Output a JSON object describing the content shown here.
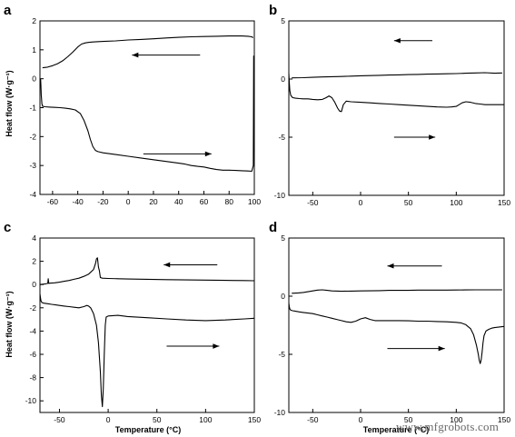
{
  "watermark": "www.mfgrobots.com",
  "chart_data": [
    {
      "type": "line",
      "panel_label": "a",
      "ylabel": "Heat flow (W·g⁻¹)",
      "xlabel": "",
      "xlim": [
        -70,
        100
      ],
      "ylim": [
        -4,
        2
      ],
      "xticks": [
        -60,
        -40,
        -20,
        0,
        20,
        40,
        60,
        80,
        100
      ],
      "yticks": [
        -4,
        -3,
        -2,
        -1,
        0,
        1,
        2
      ],
      "arrows": [
        {
          "direction": "left",
          "x1": 57,
          "x2": 3,
          "y": 0.82
        },
        {
          "direction": "right",
          "x1": 12,
          "x2": 66,
          "y": -2.6
        }
      ],
      "series": [
        {
          "x": [
            -68,
            -64,
            -60,
            -56,
            -52,
            -48,
            -44,
            -40,
            -37,
            -34,
            -31,
            -28,
            -25,
            -20,
            -10,
            0,
            10,
            20,
            30,
            40,
            50,
            60,
            70,
            80,
            90,
            95,
            98,
            99
          ],
          "y": [
            0.38,
            0.4,
            0.45,
            0.52,
            0.62,
            0.76,
            0.92,
            1.1,
            1.2,
            1.24,
            1.26,
            1.27,
            1.28,
            1.29,
            1.31,
            1.34,
            1.36,
            1.38,
            1.41,
            1.43,
            1.45,
            1.46,
            1.47,
            1.48,
            1.48,
            1.47,
            1.45,
            1.42
          ]
        },
        {
          "x": [
            -69.5,
            -69.3,
            -69,
            -68.5,
            -68,
            -66,
            -62,
            -58,
            -54,
            -50,
            -46,
            -42,
            -38,
            -35,
            -32,
            -30,
            -28,
            -26,
            -24,
            -22,
            -20,
            -10,
            0,
            10,
            20,
            30,
            40,
            45,
            50,
            55,
            60,
            65,
            70,
            75,
            80,
            85,
            90,
            95,
            98,
            99.2,
            99.5
          ],
          "y": [
            0.0,
            -0.2,
            -0.55,
            -0.85,
            -0.95,
            -0.97,
            -0.98,
            -0.99,
            -1.0,
            -1.02,
            -1.04,
            -1.08,
            -1.2,
            -1.45,
            -1.8,
            -2.1,
            -2.35,
            -2.48,
            -2.52,
            -2.54,
            -2.56,
            -2.62,
            -2.68,
            -2.74,
            -2.8,
            -2.86,
            -2.92,
            -2.95,
            -3.0,
            -3.03,
            -3.05,
            -3.1,
            -3.14,
            -3.16,
            -3.16,
            -3.17,
            -3.18,
            -3.19,
            -3.2,
            -3.0,
            0.8
          ]
        }
      ]
    },
    {
      "type": "line",
      "panel_label": "b",
      "ylabel": "",
      "xlabel": "",
      "xlim": [
        -75,
        150
      ],
      "ylim": [
        -10,
        5
      ],
      "xticks": [
        -50,
        0,
        50,
        100,
        150
      ],
      "yticks": [
        -10,
        -5,
        0,
        5
      ],
      "arrows": [
        {
          "direction": "left",
          "x1": 75,
          "x2": 35,
          "y": 3.3
        },
        {
          "direction": "right",
          "x1": 35,
          "x2": 78,
          "y": -5.0
        }
      ],
      "series": [
        {
          "x": [
            -72,
            -60,
            -50,
            -40,
            -30,
            -20,
            -10,
            0,
            10,
            20,
            30,
            40,
            50,
            60,
            70,
            80,
            90,
            100,
            110,
            120,
            130,
            140,
            148
          ],
          "y": [
            0.1,
            0.12,
            0.15,
            0.18,
            0.2,
            0.22,
            0.25,
            0.28,
            0.3,
            0.32,
            0.34,
            0.36,
            0.38,
            0.4,
            0.42,
            0.44,
            0.45,
            0.47,
            0.5,
            0.52,
            0.55,
            0.5,
            0.52
          ]
        },
        {
          "x": [
            -75,
            -74.5,
            -74,
            -73,
            -71,
            -68,
            -64,
            -60,
            -55,
            -50,
            -45,
            -40,
            -36,
            -33,
            -30,
            -27,
            -24,
            -22,
            -20,
            -18,
            -15,
            -10,
            0,
            10,
            20,
            30,
            40,
            50,
            60,
            70,
            80,
            90,
            95,
            100,
            103,
            106,
            110,
            115,
            120,
            125,
            130,
            140,
            150
          ],
          "y": [
            0.5,
            -0.3,
            -1.0,
            -1.4,
            -1.6,
            -1.65,
            -1.68,
            -1.7,
            -1.7,
            -1.75,
            -1.78,
            -1.75,
            -1.6,
            -1.45,
            -1.6,
            -2.0,
            -2.5,
            -2.75,
            -2.8,
            -2.2,
            -1.9,
            -1.95,
            -2.0,
            -2.05,
            -2.1,
            -2.15,
            -2.2,
            -2.25,
            -2.3,
            -2.35,
            -2.4,
            -2.42,
            -2.4,
            -2.35,
            -2.2,
            -2.05,
            -1.95,
            -2.0,
            -2.1,
            -2.15,
            -2.2,
            -2.2,
            -2.2
          ]
        }
      ]
    },
    {
      "type": "line",
      "panel_label": "c",
      "ylabel": "Heat flow (W·g⁻¹)",
      "xlabel": "Temperature (°C)",
      "xlim": [
        -70,
        150
      ],
      "ylim": [
        -11,
        4
      ],
      "xticks": [
        -50,
        0,
        50,
        100,
        150
      ],
      "yticks": [
        -10,
        -8,
        -6,
        -4,
        -2,
        0,
        2,
        4
      ],
      "arrows": [
        {
          "direction": "left",
          "x1": 112,
          "x2": 57,
          "y": 1.7
        },
        {
          "direction": "right",
          "x1": 60,
          "x2": 114,
          "y": -5.3
        }
      ],
      "series": [
        {
          "x": [
            -70,
            -65,
            -62,
            -61.5,
            -61,
            -60,
            -55,
            -50,
            -45,
            -40,
            -35,
            -30,
            -25,
            -20,
            -15,
            -13,
            -12,
            -11,
            -10,
            -9,
            -8,
            -6,
            0,
            10,
            20,
            40,
            60,
            80,
            100,
            120,
            140,
            150
          ],
          "y": [
            0.0,
            0.05,
            0.1,
            0.5,
            0.1,
            0.12,
            0.15,
            0.2,
            0.28,
            0.35,
            0.45,
            0.55,
            0.7,
            0.9,
            1.3,
            1.8,
            2.2,
            2.3,
            1.5,
            1.2,
            0.6,
            0.55,
            0.52,
            0.5,
            0.48,
            0.45,
            0.42,
            0.4,
            0.38,
            0.36,
            0.34,
            0.33
          ]
        },
        {
          "x": [
            -70,
            -69.5,
            -69,
            -68,
            -66,
            -62,
            -58,
            -54,
            -50,
            -45,
            -40,
            -35,
            -30,
            -25,
            -22,
            -20,
            -18,
            -15,
            -12,
            -10,
            -8,
            -7,
            -6,
            -5,
            -4,
            -3,
            -2,
            0,
            10,
            20,
            40,
            60,
            80,
            100,
            120,
            140,
            150
          ],
          "y": [
            -0.8,
            -1.1,
            -1.4,
            -1.55,
            -1.6,
            -1.65,
            -1.7,
            -1.75,
            -1.8,
            -1.85,
            -1.9,
            -1.95,
            -2.0,
            -1.9,
            -1.8,
            -1.85,
            -2.0,
            -2.5,
            -3.5,
            -5.0,
            -7.5,
            -9.5,
            -10.5,
            -9.0,
            -6.0,
            -3.5,
            -2.8,
            -2.7,
            -2.65,
            -2.75,
            -2.85,
            -2.95,
            -3.05,
            -3.1,
            -3.05,
            -2.95,
            -2.9
          ]
        }
      ]
    },
    {
      "type": "line",
      "panel_label": "d",
      "ylabel": "",
      "xlabel": "Temperature (°C)",
      "xlim": [
        -75,
        150
      ],
      "ylim": [
        -10,
        5
      ],
      "xticks": [
        -50,
        0,
        50,
        100,
        150
      ],
      "yticks": [
        -10,
        -5,
        0,
        5
      ],
      "arrows": [
        {
          "direction": "left",
          "x1": 85,
          "x2": 28,
          "y": 2.6
        },
        {
          "direction": "right",
          "x1": 28,
          "x2": 88,
          "y": -4.5
        }
      ],
      "series": [
        {
          "x": [
            -72,
            -65,
            -60,
            -55,
            -50,
            -45,
            -40,
            -35,
            -30,
            -20,
            -10,
            0,
            10,
            20,
            30,
            40,
            50,
            60,
            70,
            80,
            90,
            100,
            110,
            120,
            130,
            140,
            148
          ],
          "y": [
            0.25,
            0.28,
            0.32,
            0.38,
            0.45,
            0.52,
            0.55,
            0.5,
            0.45,
            0.42,
            0.44,
            0.45,
            0.46,
            0.48,
            0.5,
            0.5,
            0.5,
            0.52,
            0.52,
            0.52,
            0.52,
            0.53,
            0.54,
            0.55,
            0.55,
            0.55,
            0.55
          ]
        },
        {
          "x": [
            -75,
            -74.5,
            -74,
            -73,
            -71,
            -68,
            -64,
            -60,
            -55,
            -50,
            -45,
            -40,
            -35,
            -30,
            -25,
            -20,
            -15,
            -10,
            -5,
            0,
            5,
            10,
            15,
            20,
            30,
            40,
            50,
            60,
            70,
            80,
            90,
            100,
            105,
            110,
            115,
            118,
            121,
            123,
            124,
            125,
            126,
            127,
            128,
            129,
            131,
            134,
            137,
            140,
            145,
            150
          ],
          "y": [
            -0.6,
            -0.9,
            -1.1,
            -1.2,
            -1.25,
            -1.3,
            -1.35,
            -1.4,
            -1.45,
            -1.5,
            -1.6,
            -1.7,
            -1.8,
            -1.9,
            -2.0,
            -2.1,
            -2.2,
            -2.25,
            -2.15,
            -1.95,
            -1.85,
            -2.0,
            -2.1,
            -2.1,
            -2.1,
            -2.1,
            -2.12,
            -2.15,
            -2.15,
            -2.18,
            -2.2,
            -2.25,
            -2.3,
            -2.45,
            -2.8,
            -3.3,
            -4.2,
            -5.0,
            -5.5,
            -5.8,
            -5.5,
            -4.8,
            -4.0,
            -3.4,
            -3.0,
            -2.85,
            -2.75,
            -2.7,
            -2.65,
            -2.6
          ]
        }
      ]
    }
  ]
}
